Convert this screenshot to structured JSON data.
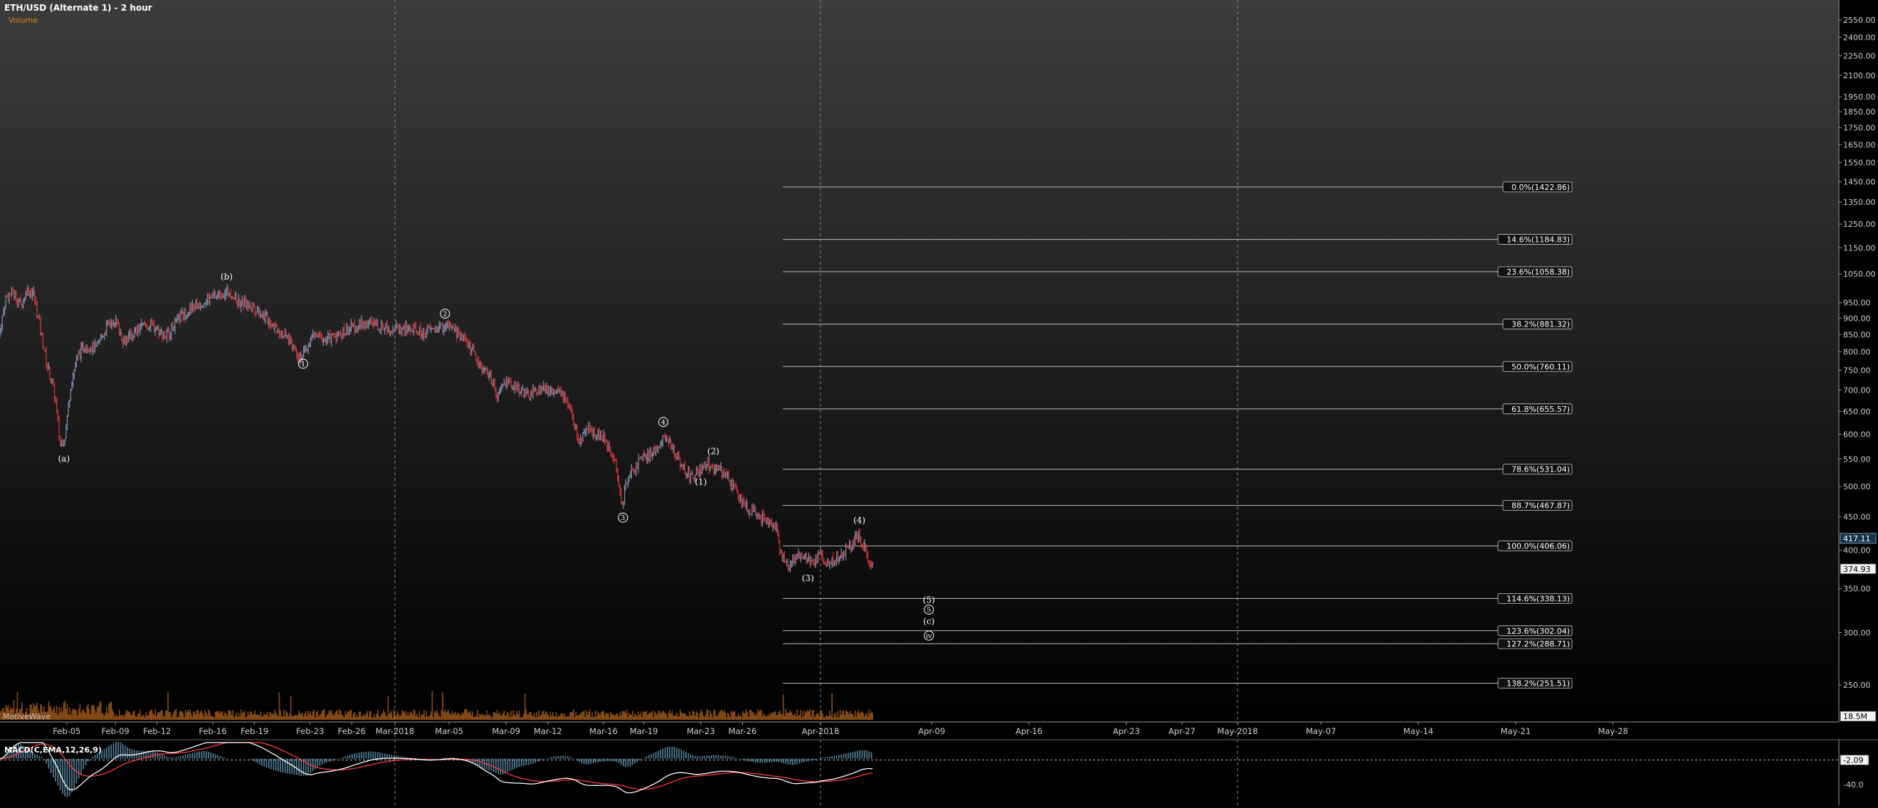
{
  "header": {
    "title": "ETH/USD (Alternate 1) - 2 hour",
    "volume_label": "Volume"
  },
  "watermark": "MotiveWave",
  "colors": {
    "background_top": "#3c3c3c",
    "background_bottom": "#000000",
    "up_bar": "#7e93b3",
    "down_bar": "#d23a3a",
    "fib_line": "#bdbdbd",
    "volume": "#b5651d",
    "macd_line": "#ffffff",
    "signal_line": "#ff3b3b",
    "histogram": "#6fa8c8"
  },
  "chart_data": {
    "type": "candlestick",
    "y_scale": "log",
    "ylim": [
      228,
      2700
    ],
    "y_ticks": [
      2550,
      2400,
      2250,
      2100,
      1950,
      1850,
      1750,
      1650,
      1550,
      1450,
      1350,
      1250,
      1150,
      1050,
      950,
      900,
      850,
      800,
      750,
      700,
      650,
      600,
      550,
      500,
      450,
      400,
      350,
      300,
      250
    ],
    "x_labels": [
      "Feb-05",
      "Feb-09",
      "Feb-12",
      "Feb-16",
      "Feb-19",
      "Feb-23",
      "Feb-26",
      "Mar-2018",
      "Mar-05",
      "Mar-09",
      "Mar-12",
      "Mar-16",
      "Mar-19",
      "Mar-23",
      "Mar-26",
      "Apr-2018",
      "Apr-09",
      "Apr-16",
      "Apr-23",
      "Apr-27",
      "May-2018",
      "May-07",
      "May-14",
      "May-21",
      "May-28"
    ],
    "x_label_days": [
      4.8,
      8.3,
      11.3,
      15.3,
      18.3,
      22.3,
      25.3,
      28.4,
      32.3,
      36.4,
      39.4,
      43.4,
      46.3,
      50.4,
      53.4,
      59.0,
      67.0,
      74.0,
      81.0,
      85.0,
      89.0,
      95.0,
      102.0,
      109.0,
      116.0
    ],
    "month_divider_days": [
      28.4,
      59.0,
      89.0
    ],
    "price_path": [
      {
        "day": 0.0,
        "price": 840
      },
      {
        "day": 0.5,
        "price": 965
      },
      {
        "day": 1.0,
        "price": 985
      },
      {
        "day": 1.6,
        "price": 940
      },
      {
        "day": 2.0,
        "price": 995
      },
      {
        "day": 2.5,
        "price": 980
      },
      {
        "day": 3.0,
        "price": 860
      },
      {
        "day": 3.5,
        "price": 760
      },
      {
        "day": 4.0,
        "price": 690
      },
      {
        "day": 4.4,
        "price": 580
      },
      {
        "day": 4.8,
        "price": 600
      },
      {
        "day": 5.2,
        "price": 720
      },
      {
        "day": 5.7,
        "price": 790
      },
      {
        "day": 6.2,
        "price": 820
      },
      {
        "day": 7.0,
        "price": 810
      },
      {
        "day": 7.6,
        "price": 860
      },
      {
        "day": 8.3,
        "price": 900
      },
      {
        "day": 9.0,
        "price": 830
      },
      {
        "day": 9.6,
        "price": 850
      },
      {
        "day": 10.5,
        "price": 880
      },
      {
        "day": 11.3,
        "price": 870
      },
      {
        "day": 12.0,
        "price": 845
      },
      {
        "day": 13.0,
        "price": 900
      },
      {
        "day": 14.0,
        "price": 935
      },
      {
        "day": 15.0,
        "price": 960
      },
      {
        "day": 16.0,
        "price": 980
      },
      {
        "day": 16.6,
        "price": 990
      },
      {
        "day": 17.2,
        "price": 950
      },
      {
        "day": 18.3,
        "price": 940
      },
      {
        "day": 19.0,
        "price": 910
      },
      {
        "day": 20.0,
        "price": 870
      },
      {
        "day": 21.0,
        "price": 830
      },
      {
        "day": 21.6,
        "price": 790
      },
      {
        "day": 22.0,
        "price": 795
      },
      {
        "day": 22.6,
        "price": 850
      },
      {
        "day": 23.5,
        "price": 835
      },
      {
        "day": 24.5,
        "price": 850
      },
      {
        "day": 25.3,
        "price": 870
      },
      {
        "day": 26.5,
        "price": 885
      },
      {
        "day": 27.5,
        "price": 875
      },
      {
        "day": 28.4,
        "price": 870
      },
      {
        "day": 29.5,
        "price": 865
      },
      {
        "day": 30.5,
        "price": 855
      },
      {
        "day": 31.5,
        "price": 870
      },
      {
        "day": 32.3,
        "price": 875
      },
      {
        "day": 33.3,
        "price": 845
      },
      {
        "day": 34.0,
        "price": 810
      },
      {
        "day": 34.6,
        "price": 760
      },
      {
        "day": 35.3,
        "price": 740
      },
      {
        "day": 35.8,
        "price": 680
      },
      {
        "day": 36.4,
        "price": 720
      },
      {
        "day": 37.2,
        "price": 710
      },
      {
        "day": 38.0,
        "price": 685
      },
      {
        "day": 39.0,
        "price": 705
      },
      {
        "day": 39.4,
        "price": 700
      },
      {
        "day": 40.5,
        "price": 690
      },
      {
        "day": 41.2,
        "price": 640
      },
      {
        "day": 41.7,
        "price": 585
      },
      {
        "day": 42.5,
        "price": 610
      },
      {
        "day": 43.4,
        "price": 595
      },
      {
        "day": 44.2,
        "price": 560
      },
      {
        "day": 44.8,
        "price": 470
      },
      {
        "day": 45.3,
        "price": 520
      },
      {
        "day": 46.0,
        "price": 545
      },
      {
        "day": 47.0,
        "price": 560
      },
      {
        "day": 47.8,
        "price": 595
      },
      {
        "day": 48.5,
        "price": 570
      },
      {
        "day": 49.2,
        "price": 535
      },
      {
        "day": 49.8,
        "price": 515
      },
      {
        "day": 50.4,
        "price": 530
      },
      {
        "day": 51.0,
        "price": 540
      },
      {
        "day": 52.0,
        "price": 525
      },
      {
        "day": 53.0,
        "price": 495
      },
      {
        "day": 53.4,
        "price": 475
      },
      {
        "day": 54.3,
        "price": 455
      },
      {
        "day": 55.0,
        "price": 445
      },
      {
        "day": 55.8,
        "price": 440
      },
      {
        "day": 56.2,
        "price": 400
      },
      {
        "day": 56.8,
        "price": 375
      },
      {
        "day": 57.4,
        "price": 395
      },
      {
        "day": 58.0,
        "price": 390
      },
      {
        "day": 58.5,
        "price": 380
      },
      {
        "day": 59.0,
        "price": 395
      },
      {
        "day": 59.5,
        "price": 380
      },
      {
        "day": 60.2,
        "price": 390
      },
      {
        "day": 60.8,
        "price": 398
      },
      {
        "day": 61.4,
        "price": 410
      },
      {
        "day": 61.8,
        "price": 425
      },
      {
        "day": 62.3,
        "price": 400
      },
      {
        "day": 62.8,
        "price": 378
      }
    ],
    "wave_labels": [
      {
        "text": "(a)",
        "day": 4.6,
        "price": 545,
        "style": "plain"
      },
      {
        "text": "(b)",
        "day": 16.3,
        "price": 1030,
        "style": "plain"
      },
      {
        "text": "1",
        "day": 21.8,
        "price": 760,
        "style": "circle"
      },
      {
        "text": "2",
        "day": 32.0,
        "price": 905,
        "style": "circle"
      },
      {
        "text": "3",
        "day": 44.8,
        "price": 444,
        "style": "circle"
      },
      {
        "text": "4",
        "day": 47.7,
        "price": 620,
        "style": "circle"
      },
      {
        "text": "(1)",
        "day": 50.4,
        "price": 503,
        "style": "plain"
      },
      {
        "text": "(2)",
        "day": 51.3,
        "price": 560,
        "style": "plain"
      },
      {
        "text": "(3)",
        "day": 58.1,
        "price": 359,
        "style": "plain"
      },
      {
        "text": "(4)",
        "day": 61.8,
        "price": 440,
        "style": "plain"
      },
      {
        "text": "(5)",
        "day": 66.8,
        "price": 333,
        "style": "plain"
      },
      {
        "text": "5",
        "day": 66.8,
        "price": 322,
        "style": "circle"
      },
      {
        "text": "(c)",
        "day": 66.8,
        "price": 309,
        "style": "plain"
      },
      {
        "text": "iv",
        "day": 66.8,
        "price": 294,
        "style": "circle"
      }
    ],
    "fib_levels": [
      {
        "label": "0.0%(1422.86)",
        "price": 1422.86
      },
      {
        "label": "14.6%(1184.83)",
        "price": 1184.83
      },
      {
        "label": "23.6%(1058.38)",
        "price": 1058.38
      },
      {
        "label": "38.2%(881.32)",
        "price": 881.32
      },
      {
        "label": "50.0%(760.11)",
        "price": 760.11
      },
      {
        "label": "61.8%(655.57)",
        "price": 655.57
      },
      {
        "label": "78.6%(531.04)",
        "price": 531.04
      },
      {
        "label": "88.7%(467.87)",
        "price": 467.87
      },
      {
        "label": "100.0%(406.06)",
        "price": 406.06
      },
      {
        "label": "114.6%(338.13)",
        "price": 338.13
      },
      {
        "label": "123.6%(302.04)",
        "price": 302.04
      },
      {
        "label": "127.2%(288.71)",
        "price": 288.71
      },
      {
        "label": "138.2%(251.51)",
        "price": 251.51
      }
    ],
    "fib_start_day": 56.3,
    "price_badges": [
      {
        "label": "417.11",
        "price": 417.11,
        "style": "dark"
      },
      {
        "label": "374.93",
        "price": 374.93,
        "style": "light"
      }
    ],
    "volume_badge": "18.5M",
    "macd": {
      "label": "MACD(C,EMA,12,26,9)",
      "ticks": [
        "-2.09",
        "-40.0"
      ],
      "tick_values": [
        -2.09,
        -40.0
      ],
      "ylim": [
        -70,
        25
      ]
    }
  }
}
